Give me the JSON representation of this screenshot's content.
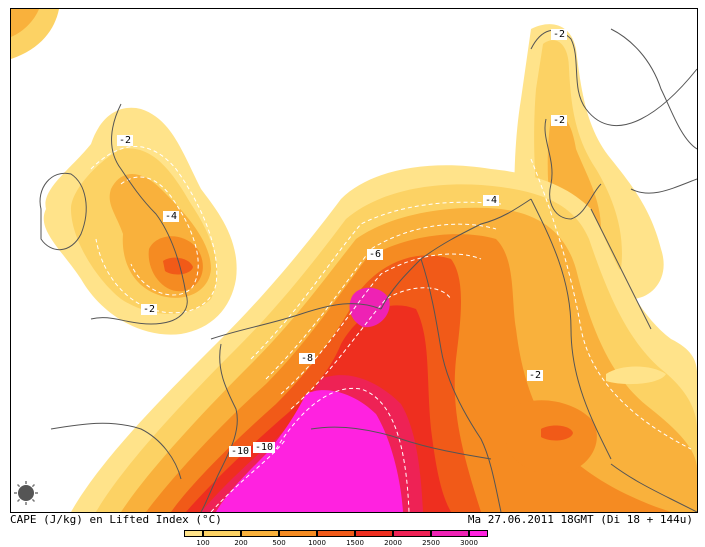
{
  "caption": {
    "left": "CAPE (J/kg) en Lifted Index (°C)",
    "right": "Ma 27.06.2011 18GMT (Di 18 + 144u)"
  },
  "legend": {
    "ticks": [
      "100",
      "200",
      "500",
      "1000",
      "1500",
      "2000",
      "2500",
      "3000"
    ],
    "colors": [
      "#ffe38a",
      "#fcd264",
      "#f9b13c",
      "#f58b22",
      "#f15a18",
      "#ee2f1f",
      "#ee2255",
      "#ee22b4",
      "#ff22e0"
    ]
  },
  "lifted_index_labels": [
    {
      "text": "-2"
    },
    {
      "text": "-2"
    },
    {
      "text": "-2"
    },
    {
      "text": "-4"
    },
    {
      "text": "-2"
    },
    {
      "text": "-4"
    },
    {
      "text": "-6"
    },
    {
      "text": "-8"
    },
    {
      "text": "-2"
    },
    {
      "text": "-10"
    },
    {
      "text": "-10"
    }
  ],
  "map": {
    "land_color": "#ffffff",
    "border_color": "#555555",
    "contour_color": "#ffffff"
  }
}
